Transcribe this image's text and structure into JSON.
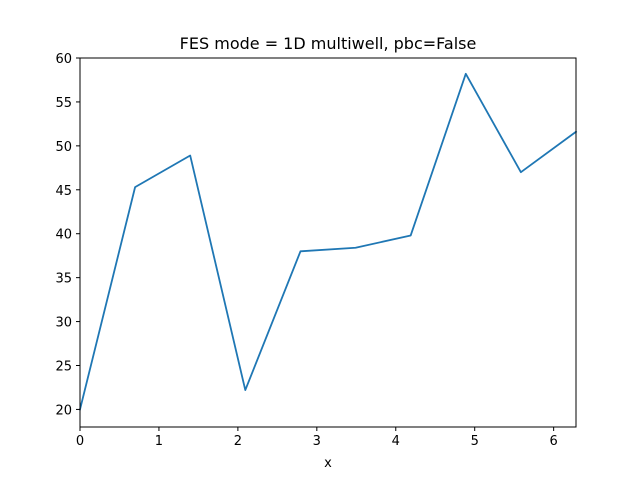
{
  "chart_data": {
    "type": "line",
    "title": "FES mode = 1D multiwell, pbc=False",
    "xlabel": "x",
    "ylabel": "",
    "xlim": [
      0,
      6.2832
    ],
    "ylim": [
      18,
      60
    ],
    "x_ticks": [
      0,
      1,
      2,
      3,
      4,
      5,
      6
    ],
    "y_ticks": [
      20,
      25,
      30,
      35,
      40,
      45,
      50,
      55,
      60
    ],
    "grid": false,
    "legend": "none",
    "series": [
      {
        "color": "#1f77b4",
        "x": [
          0,
          0.698,
          1.396,
          2.094,
          2.793,
          3.491,
          4.189,
          4.887,
          5.585,
          6.283
        ],
        "y": [
          20.0,
          45.3,
          48.9,
          22.2,
          38.0,
          38.4,
          39.8,
          58.2,
          47.0,
          51.6
        ]
      }
    ]
  }
}
